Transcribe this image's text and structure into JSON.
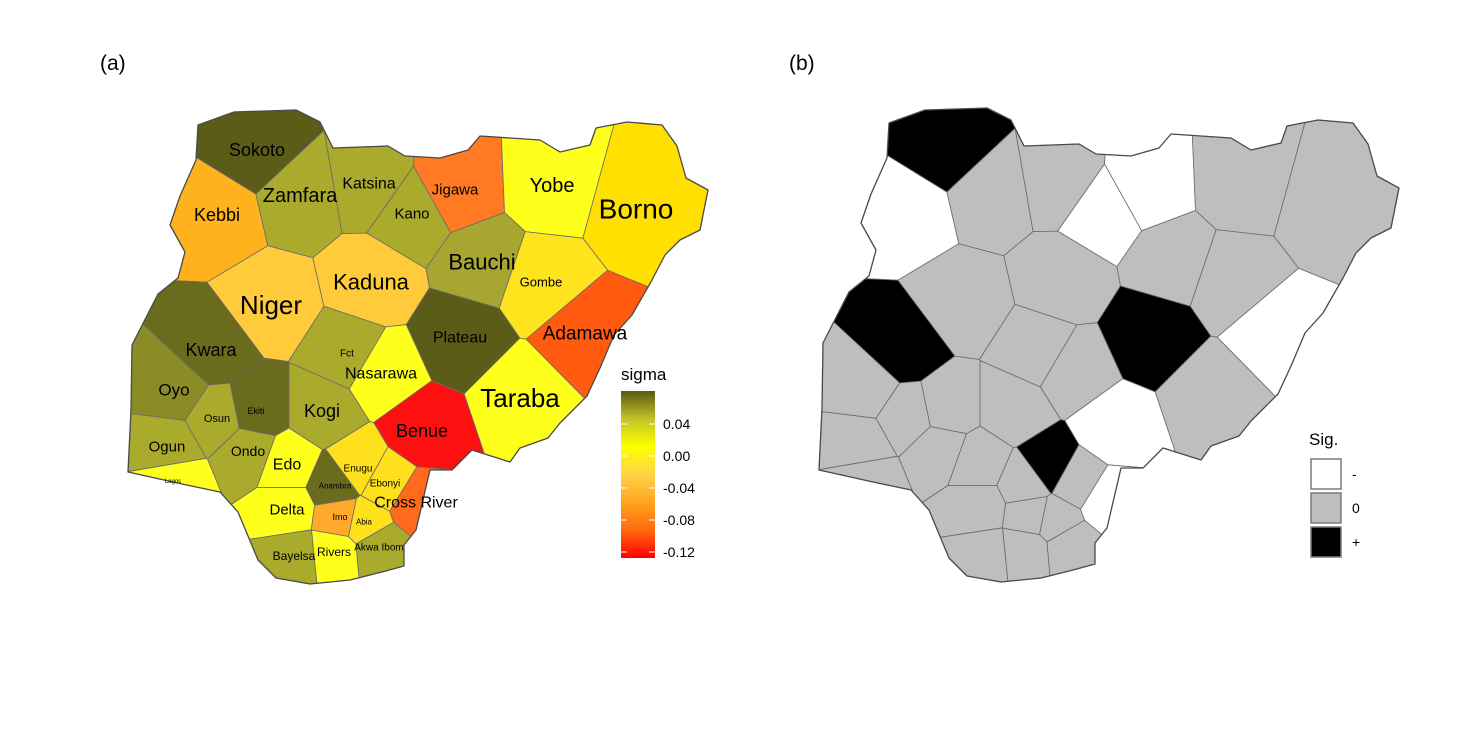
{
  "panels": [
    {
      "id": "a",
      "label": "(a)"
    },
    {
      "id": "b",
      "label": "(b)"
    }
  ],
  "map_a": {
    "legend": {
      "title": "sigma",
      "ticks": [
        "0.04",
        "0.00",
        "-0.04",
        "-0.08",
        "-0.12"
      ],
      "gradient": [
        "#5a5a16",
        "#c2c22a",
        "#ffff00",
        "#ffd24a",
        "#ffa51e",
        "#ff6a10",
        "#ff0000"
      ]
    },
    "states": [
      {
        "name": "Sokoto",
        "color": "#5c5c19",
        "sig": "+",
        "size": 18
      },
      {
        "name": "Zamfara",
        "color": "#aaaa2c",
        "sig": "0",
        "size": 20
      },
      {
        "name": "Katsina",
        "color": "#aaaa2c",
        "sig": "0",
        "size": 16
      },
      {
        "name": "Jigawa",
        "color": "#ff7a22",
        "sig": "-",
        "size": 15
      },
      {
        "name": "Yobe",
        "color": "#ffff1c",
        "sig": "0",
        "size": 20
      },
      {
        "name": "Borno",
        "color": "#ffe000",
        "sig": "0",
        "size": 28
      },
      {
        "name": "Kebbi",
        "color": "#ffb21e",
        "sig": "-",
        "size": 18
      },
      {
        "name": "Kano",
        "color": "#aaaa2c",
        "sig": "-",
        "size": 15
      },
      {
        "name": "Bauchi",
        "color": "#a6a631",
        "sig": "0",
        "size": 22
      },
      {
        "name": "Gombe",
        "color": "#ffe31c",
        "sig": "0",
        "size": 13
      },
      {
        "name": "Niger",
        "color": "#ffcb3a",
        "sig": "0",
        "size": 26
      },
      {
        "name": "Kaduna",
        "color": "#ffcb3a",
        "sig": "0",
        "size": 22
      },
      {
        "name": "Adamawa",
        "color": "#ff5a10",
        "sig": "-",
        "size": 19
      },
      {
        "name": "Plateau",
        "color": "#5c5c19",
        "sig": "+",
        "size": 16
      },
      {
        "name": "Kwara",
        "color": "#6b6b1e",
        "sig": "+",
        "size": 18
      },
      {
        "name": "Fct",
        "color": "#aaaa2c",
        "sig": "0",
        "size": 10
      },
      {
        "name": "Nasarawa",
        "color": "#ffff1c",
        "sig": "0",
        "size": 16
      },
      {
        "name": "Taraba",
        "color": "#ffff1c",
        "sig": "0",
        "size": 26
      },
      {
        "name": "Oyo",
        "color": "#8c8c26",
        "sig": "0",
        "size": 17
      },
      {
        "name": "Kogi",
        "color": "#aaaa2c",
        "sig": "0",
        "size": 18
      },
      {
        "name": "Osun",
        "color": "#aaaa2c",
        "sig": "0",
        "size": 11
      },
      {
        "name": "Ekiti",
        "color": "#6b6b1e",
        "sig": "0",
        "size": 9
      },
      {
        "name": "Benue",
        "color": "#ff1010",
        "sig": "-",
        "size": 18
      },
      {
        "name": "Ogun",
        "color": "#aaaa2c",
        "sig": "0",
        "size": 15
      },
      {
        "name": "Ondo",
        "color": "#aaaa2c",
        "sig": "0",
        "size": 14
      },
      {
        "name": "Edo",
        "color": "#ffff1c",
        "sig": "0",
        "size": 16
      },
      {
        "name": "Enugu",
        "color": "#ffe01c",
        "sig": "+",
        "size": 10
      },
      {
        "name": "Anambra",
        "color": "#6b6b1e",
        "sig": "0",
        "size": 8
      },
      {
        "name": "Ebonyi",
        "color": "#ffe01c",
        "sig": "0",
        "size": 10
      },
      {
        "name": "Lagos",
        "color": "#ffff1c",
        "sig": "0",
        "size": 6
      },
      {
        "name": "Delta",
        "color": "#ffff1c",
        "sig": "0",
        "size": 15
      },
      {
        "name": "Imo",
        "color": "#ffaa2c",
        "sig": "0",
        "size": 9
      },
      {
        "name": "Abia",
        "color": "#ffe01c",
        "sig": "0",
        "size": 8
      },
      {
        "name": "Cross River",
        "color": "#ff6a1c",
        "sig": "-",
        "size": 16
      },
      {
        "name": "Bayelsa",
        "color": "#aaaa2c",
        "sig": "0",
        "size": 12
      },
      {
        "name": "Rivers",
        "color": "#ffff1c",
        "sig": "0",
        "size": 12
      },
      {
        "name": "Akwa Ibom",
        "color": "#aaaa2c",
        "sig": "0",
        "size": 10
      }
    ]
  },
  "map_b": {
    "legend": {
      "title": "Sig.",
      "items": [
        {
          "label": "-",
          "color": "#ffffff"
        },
        {
          "label": "0",
          "color": "#bebebe"
        },
        {
          "label": "+",
          "color": "#000000"
        }
      ]
    }
  }
}
